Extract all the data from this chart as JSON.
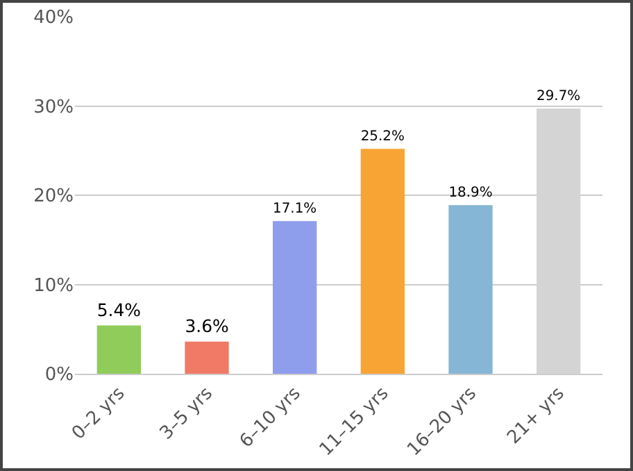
{
  "chart_data": {
    "type": "bar",
    "categories": [
      "0–2 yrs",
      "3–5 yrs",
      "6–10 yrs",
      "11–15 yrs",
      "16–20 yrs",
      "21+ yrs"
    ],
    "values": [
      5.4,
      3.6,
      17.1,
      25.2,
      18.9,
      29.7
    ],
    "colors": [
      "#8fcc5a",
      "#f07a66",
      "#8f9ded",
      "#f8a435",
      "#86b6d6",
      "#d4d4d4"
    ],
    "value_labels": [
      "5.4%",
      "3.6%",
      "17.1%",
      "25.2%",
      "18.9%",
      "29.7%"
    ],
    "ylim": [
      0,
      40
    ],
    "yticks": [
      {
        "value": 0,
        "label": "0%"
      },
      {
        "value": 10,
        "label": "10%"
      },
      {
        "value": 20,
        "label": "20%"
      },
      {
        "value": 30,
        "label": "30%"
      },
      {
        "value": 40,
        "label": "40%"
      }
    ],
    "grid": "y",
    "legend": false
  }
}
